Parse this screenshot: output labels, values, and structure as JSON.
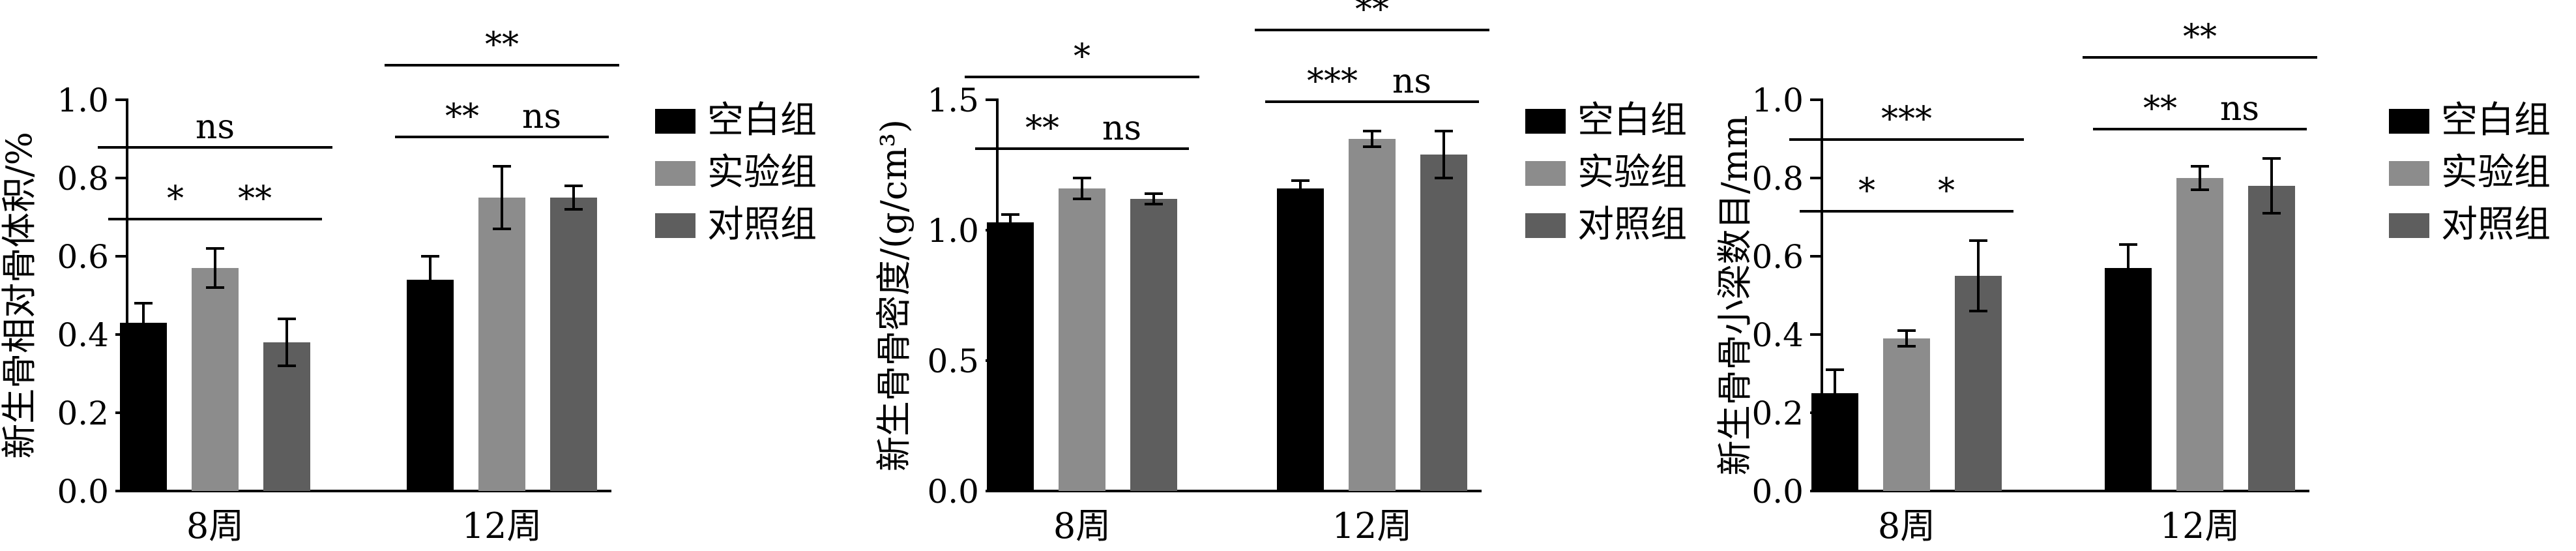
{
  "chart_data": [
    {
      "type": "bar",
      "ylabel": "新生骨相对骨体积/%",
      "xlabel": "",
      "categories": [
        "8周",
        "12周"
      ],
      "ylim": [
        0,
        1.0
      ],
      "yticks": [
        "0.0",
        "0.2",
        "0.4",
        "0.6",
        "0.8",
        "1.0"
      ],
      "series": [
        {
          "name": "空白组",
          "values": [
            0.43,
            0.54
          ],
          "errors": [
            0.05,
            0.06
          ]
        },
        {
          "name": "实验组",
          "values": [
            0.57,
            0.75
          ],
          "errors": [
            0.05,
            0.08
          ]
        },
        {
          "name": "对照组",
          "values": [
            0.38,
            0.75
          ],
          "errors": [
            0.06,
            0.03
          ]
        }
      ],
      "annotations": [
        {
          "group": 0,
          "from": 0,
          "to": 1,
          "label": "*",
          "level": 0
        },
        {
          "group": 0,
          "from": 1,
          "to": 2,
          "label": "**",
          "level": 0
        },
        {
          "group": 0,
          "from": 0,
          "to": 2,
          "label": "ns",
          "level": 1
        },
        {
          "group": 1,
          "from": 0,
          "to": 1,
          "label": "**",
          "level": 0
        },
        {
          "group": 1,
          "from": 1,
          "to": 2,
          "label": "ns",
          "level": 0
        },
        {
          "group": 1,
          "from": 0,
          "to": 2,
          "label": "**",
          "level": 1
        }
      ]
    },
    {
      "type": "bar",
      "ylabel": "新生骨骨密度/(g/cm³)",
      "xlabel": "",
      "categories": [
        "8周",
        "12周"
      ],
      "ylim": [
        0,
        1.5
      ],
      "yticks": [
        "0.0",
        "0.5",
        "1.0",
        "1.5"
      ],
      "series": [
        {
          "name": "空白组",
          "values": [
            1.03,
            1.16
          ],
          "errors": [
            0.03,
            0.03
          ]
        },
        {
          "name": "实验组",
          "values": [
            1.16,
            1.35
          ],
          "errors": [
            0.04,
            0.03
          ]
        },
        {
          "name": "对照组",
          "values": [
            1.12,
            1.29
          ],
          "errors": [
            0.02,
            0.09
          ]
        }
      ],
      "annotations": [
        {
          "group": 0,
          "from": 0,
          "to": 1,
          "label": "**",
          "level": 0
        },
        {
          "group": 0,
          "from": 1,
          "to": 2,
          "label": "ns",
          "level": 0
        },
        {
          "group": 0,
          "from": 0,
          "to": 2,
          "label": "*",
          "level": 1
        },
        {
          "group": 1,
          "from": 0,
          "to": 1,
          "label": "***",
          "level": 0
        },
        {
          "group": 1,
          "from": 1,
          "to": 2,
          "label": "ns",
          "level": 0
        },
        {
          "group": 1,
          "from": 0,
          "to": 2,
          "label": "**",
          "level": 1
        }
      ]
    },
    {
      "type": "bar",
      "ylabel": "新生骨骨小梁数目/mm",
      "xlabel": "",
      "categories": [
        "8周",
        "12周"
      ],
      "ylim": [
        0,
        1.0
      ],
      "yticks": [
        "0.0",
        "0.2",
        "0.4",
        "0.6",
        "0.8",
        "1.0"
      ],
      "series": [
        {
          "name": "空白组",
          "values": [
            0.25,
            0.57
          ],
          "errors": [
            0.06,
            0.06
          ]
        },
        {
          "name": "实验组",
          "values": [
            0.39,
            0.8
          ],
          "errors": [
            0.02,
            0.03
          ]
        },
        {
          "name": "对照组",
          "values": [
            0.55,
            0.78
          ],
          "errors": [
            0.09,
            0.07
          ]
        }
      ],
      "annotations": [
        {
          "group": 0,
          "from": 0,
          "to": 1,
          "label": "*",
          "level": 0
        },
        {
          "group": 0,
          "from": 1,
          "to": 2,
          "label": "*",
          "level": 0
        },
        {
          "group": 0,
          "from": 0,
          "to": 2,
          "label": "***",
          "level": 1
        },
        {
          "group": 1,
          "from": 0,
          "to": 1,
          "label": "**",
          "level": 0
        },
        {
          "group": 1,
          "from": 1,
          "to": 2,
          "label": "ns",
          "level": 0
        },
        {
          "group": 1,
          "from": 0,
          "to": 2,
          "label": "**",
          "level": 1
        }
      ]
    }
  ],
  "legend": {
    "placement": "right",
    "entries": [
      "空白组",
      "实验组",
      "对照组"
    ],
    "colors": [
      "#000000",
      "#8c8c8c",
      "#5e5e5e"
    ]
  }
}
